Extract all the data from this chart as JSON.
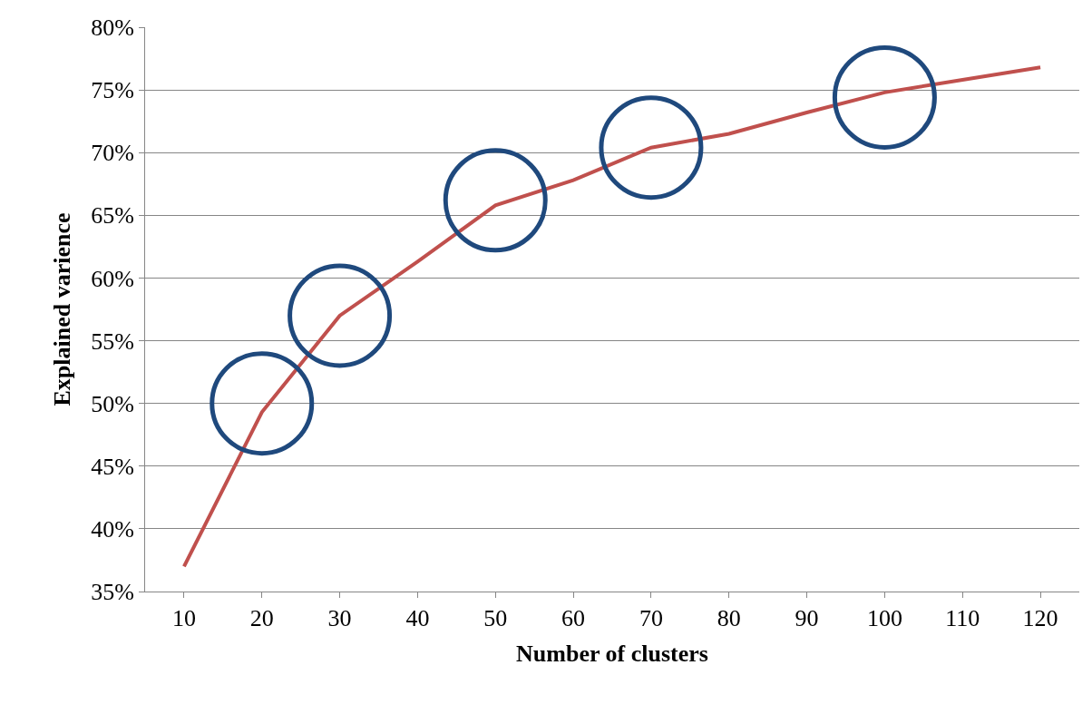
{
  "chart_data": {
    "type": "line",
    "xlabel": "Number of clusters",
    "ylabel": "Explained varience",
    "categories": [
      "10",
      "20",
      "30",
      "40",
      "50",
      "60",
      "70",
      "80",
      "90",
      "100",
      "110",
      "120"
    ],
    "series": [
      {
        "color": "#c0504d",
        "values": [
          37.0,
          49.3,
          57.0,
          61.3,
          65.8,
          67.8,
          70.4,
          71.5,
          73.2,
          74.8,
          75.8,
          76.8
        ]
      },
      {
        "type": "scatter",
        "color": "#1f497d",
        "marker": "circle",
        "x": [
          "20",
          "30",
          "50",
          "70",
          "100"
        ],
        "values": [
          50.0,
          57.0,
          66.2,
          70.4,
          74.4
        ]
      }
    ],
    "ylim": [
      35,
      80
    ],
    "yticks": [
      {
        "value": 35,
        "label": "35%"
      },
      {
        "value": 40,
        "label": "40%"
      },
      {
        "value": 45,
        "label": "45%"
      },
      {
        "value": 50,
        "label": "50%"
      },
      {
        "value": 55,
        "label": "55%"
      },
      {
        "value": 60,
        "label": "60%"
      },
      {
        "value": 65,
        "label": "65%"
      },
      {
        "value": 70,
        "label": "70%"
      },
      {
        "value": 75,
        "label": "75%"
      },
      {
        "value": 80,
        "label": "80%"
      }
    ],
    "grid": "y",
    "marker": "none",
    "line_style": "solid"
  }
}
